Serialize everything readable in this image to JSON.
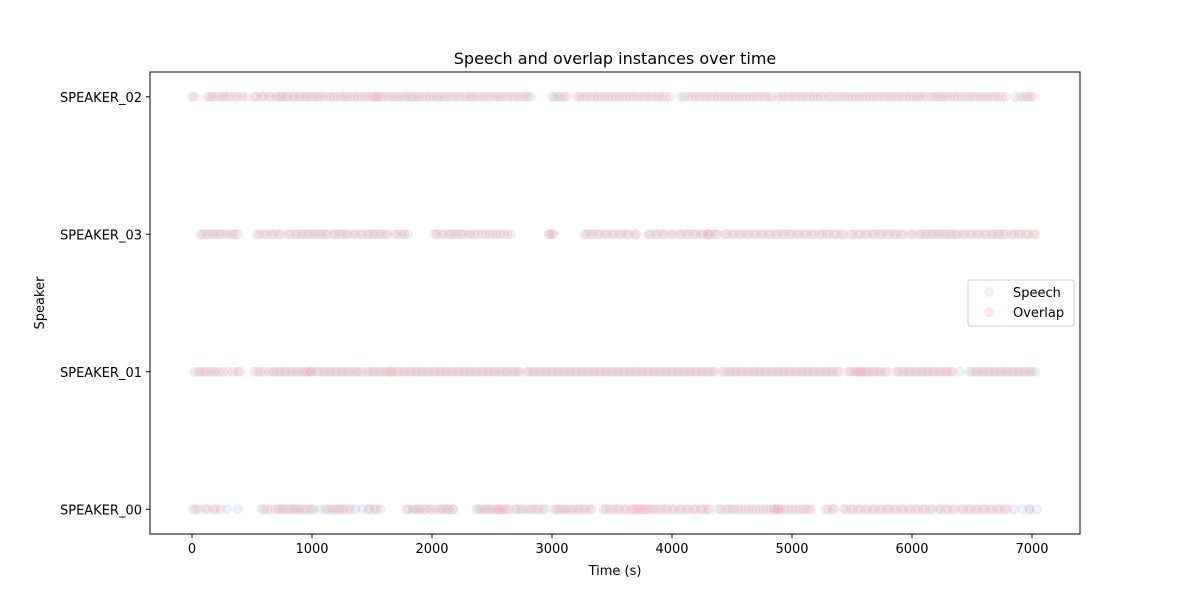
{
  "chart_data": {
    "type": "scatter",
    "title": "Speech and overlap instances over time",
    "xlabel": "Time (s)",
    "ylabel": "Speaker",
    "xlim": [
      -350,
      7400
    ],
    "x_ticks": [
      0,
      1000,
      2000,
      3000,
      4000,
      5000,
      6000,
      7000
    ],
    "categories": [
      "SPEAKER_00",
      "SPEAKER_01",
      "SPEAKER_03",
      "SPEAKER_02"
    ],
    "legend_position": "center-right",
    "grid": false,
    "series": [
      {
        "name": "Speech",
        "color": "#9fbfdf",
        "alpha": 0.2,
        "points": {
          "SPEAKER_00": [
            10,
            60,
            130,
            200,
            290,
            380,
            580,
            630,
            700,
            740,
            790,
            840,
            880,
            930,
            980,
            1020,
            1070,
            1110,
            1160,
            1200,
            1250,
            1300,
            1360,
            1420,
            1470,
            1520,
            1570,
            1790,
            1840,
            1880,
            1930,
            1980,
            2030,
            2080,
            2130,
            2170,
            2370,
            2410,
            2460,
            2500,
            2550,
            2600,
            2640,
            2690,
            2740,
            2790,
            2840,
            2890,
            2940,
            3040,
            3090,
            3130,
            3180,
            3230,
            3280,
            3330,
            3430,
            3480,
            3540,
            3600,
            3660,
            3720,
            3780,
            3830,
            3880,
            3940,
            4000,
            4060,
            4120,
            4180,
            4240,
            4290,
            4390,
            4450,
            4500,
            4550,
            4610,
            4670,
            4730,
            4790,
            4850,
            4910,
            4970,
            5030,
            5090,
            5140,
            5280,
            5340,
            5430,
            5490,
            5550,
            5610,
            5670,
            5730,
            5790,
            5850,
            5910,
            5970,
            6030,
            6090,
            6150,
            6220,
            6280,
            6340,
            6410,
            6470,
            6530,
            6590,
            6650,
            6710,
            6770,
            6850,
            6920,
            6980,
            7040
          ],
          "SPEAKER_01": [
            20,
            70,
            120,
            180,
            230,
            300,
            380,
            520,
            570,
            640,
            690,
            740,
            790,
            840,
            890,
            940,
            990,
            1040,
            1090,
            1140,
            1190,
            1240,
            1290,
            1340,
            1390,
            1460,
            1510,
            1560,
            1610,
            1660,
            1710,
            1760,
            1810,
            1860,
            1910,
            1960,
            2010,
            2060,
            2110,
            2160,
            2210,
            2260,
            2310,
            2360,
            2410,
            2460,
            2510,
            2560,
            2610,
            2660,
            2710,
            2790,
            2840,
            2890,
            2940,
            2990,
            3040,
            3090,
            3140,
            3190,
            3240,
            3290,
            3340,
            3390,
            3440,
            3490,
            3540,
            3590,
            3640,
            3690,
            3740,
            3790,
            3840,
            3890,
            3940,
            3990,
            4040,
            4090,
            4140,
            4190,
            4240,
            4290,
            4340,
            4420,
            4470,
            4520,
            4570,
            4620,
            4670,
            4720,
            4770,
            4820,
            4870,
            4920,
            4970,
            5020,
            5070,
            5120,
            5170,
            5220,
            5270,
            5320,
            5370,
            5470,
            5520,
            5570,
            5620,
            5670,
            5720,
            5770,
            5870,
            5920,
            5970,
            6020,
            6070,
            6120,
            6170,
            6220,
            6270,
            6320,
            6400,
            6480,
            6530,
            6580,
            6630,
            6680,
            6730,
            6780,
            6830,
            6880,
            6930,
            6980,
            7030
          ],
          "SPEAKER_03": [
            70,
            120,
            170,
            220,
            270,
            330,
            380,
            540,
            600,
            660,
            720,
            800,
            860,
            910,
            960,
            1010,
            1060,
            1110,
            1180,
            1230,
            1280,
            1340,
            1400,
            1460,
            1510,
            1560,
            1610,
            1690,
            1750,
            1800,
            2020,
            2080,
            2140,
            2190,
            2240,
            2300,
            2350,
            2420,
            2480,
            2540,
            2600,
            2660,
            2970,
            3010,
            3270,
            3320,
            3380,
            3440,
            3500,
            3560,
            3620,
            3690,
            3800,
            3860,
            3920,
            3990,
            4060,
            4120,
            4180,
            4240,
            4300,
            4360,
            4440,
            4500,
            4560,
            4620,
            4680,
            4740,
            4800,
            4860,
            4920,
            4980,
            5040,
            5100,
            5160,
            5230,
            5290,
            5350,
            5410,
            5490,
            5550,
            5610,
            5670,
            5730,
            5790,
            5850,
            5910,
            5990,
            6060,
            6110,
            6160,
            6210,
            6260,
            6310,
            6360,
            6420,
            6480,
            6540,
            6600,
            6660,
            6710,
            6760,
            6830,
            6890,
            6950,
            7010
          ],
          "SPEAKER_02": [
            0,
            130,
            170,
            230,
            280,
            350,
            420,
            520,
            580,
            640,
            700,
            740,
            790,
            840,
            890,
            940,
            990,
            1040,
            1090,
            1150,
            1210,
            1270,
            1320,
            1380,
            1440,
            1500,
            1550,
            1600,
            1660,
            1710,
            1770,
            1820,
            1870,
            1920,
            1980,
            2040,
            2090,
            2140,
            2200,
            2260,
            2320,
            2370,
            2430,
            2490,
            2550,
            2600,
            2660,
            2720,
            2780,
            2830,
            3000,
            3050,
            3100,
            3200,
            3260,
            3320,
            3380,
            3440,
            3500,
            3560,
            3620,
            3680,
            3740,
            3800,
            3860,
            3920,
            3980,
            4070,
            4140,
            4200,
            4260,
            4320,
            4380,
            4440,
            4500,
            4560,
            4620,
            4680,
            4740,
            4800,
            4880,
            4940,
            5000,
            5060,
            5120,
            5180,
            5240,
            5310,
            5380,
            5440,
            5500,
            5560,
            5620,
            5680,
            5740,
            5800,
            5860,
            5920,
            5980,
            6040,
            6090,
            6160,
            6210,
            6260,
            6320,
            6380,
            6450,
            6510,
            6570,
            6630,
            6690,
            6750,
            6860,
            6930,
            6980
          ]
        }
      },
      {
        "name": "Overlap",
        "color": "#ff9999",
        "alpha": 0.2,
        "points": {
          "SPEAKER_00": [
            30,
            110,
            180,
            240,
            600,
            660,
            720,
            760,
            810,
            860,
            900,
            950,
            1000,
            1130,
            1180,
            1230,
            1270,
            1320,
            1480,
            1540,
            1800,
            1860,
            1900,
            1950,
            2000,
            2060,
            2100,
            2140,
            2180,
            2390,
            2440,
            2480,
            2530,
            2560,
            2580,
            2620,
            2710,
            2760,
            2820,
            2870,
            2920,
            3020,
            3060,
            3110,
            3160,
            3210,
            3260,
            3310,
            3450,
            3510,
            3560,
            3620,
            3680,
            3700,
            3740,
            3760,
            3800,
            3850,
            3910,
            3960,
            4020,
            4080,
            4140,
            4200,
            4260,
            4310,
            4410,
            4470,
            4520,
            4580,
            4640,
            4700,
            4760,
            4820,
            4860,
            4880,
            4890,
            4940,
            5000,
            5060,
            5110,
            5160,
            5300,
            5350,
            5450,
            5510,
            5570,
            5630,
            5690,
            5750,
            5810,
            5870,
            5930,
            5990,
            6050,
            6110,
            6170,
            6240,
            6300,
            6360,
            6430,
            6490,
            6550,
            6610,
            6670,
            6730,
            6790,
            6980
          ],
          "SPEAKER_01": [
            50,
            100,
            150,
            200,
            260,
            340,
            400,
            550,
            600,
            670,
            720,
            770,
            820,
            870,
            920,
            960,
            980,
            1000,
            1060,
            1110,
            1160,
            1210,
            1260,
            1310,
            1370,
            1420,
            1480,
            1530,
            1580,
            1630,
            1650,
            1680,
            1730,
            1780,
            1830,
            1880,
            1930,
            1980,
            2030,
            2080,
            2130,
            2180,
            2230,
            2280,
            2330,
            2380,
            2430,
            2480,
            2530,
            2580,
            2630,
            2690,
            2730,
            2810,
            2860,
            2910,
            2960,
            3010,
            3060,
            3110,
            3160,
            3210,
            3260,
            3310,
            3360,
            3410,
            3460,
            3510,
            3560,
            3610,
            3660,
            3710,
            3760,
            3810,
            3860,
            3910,
            3960,
            4010,
            4060,
            4110,
            4160,
            4210,
            4260,
            4310,
            4360,
            4440,
            4490,
            4540,
            4590,
            4640,
            4690,
            4740,
            4790,
            4840,
            4890,
            4940,
            4990,
            5040,
            5090,
            5140,
            5190,
            5240,
            5290,
            5340,
            5390,
            5490,
            5540,
            5560,
            5580,
            5600,
            5640,
            5690,
            5740,
            5790,
            5890,
            5940,
            5990,
            6040,
            6090,
            6140,
            6190,
            6240,
            6290,
            6340,
            6500,
            6550,
            6600,
            6650,
            6700,
            6750,
            6800,
            6850,
            6900,
            6950,
            7000
          ],
          "SPEAKER_03": [
            90,
            140,
            190,
            240,
            300,
            350,
            560,
            620,
            680,
            740,
            820,
            880,
            930,
            980,
            1030,
            1080,
            1130,
            1200,
            1250,
            1300,
            1360,
            1420,
            1480,
            1530,
            1580,
            1630,
            1710,
            1770,
            2040,
            2100,
            2160,
            2210,
            2260,
            2320,
            2380,
            2450,
            2510,
            2570,
            2630,
            2980,
            3000,
            3290,
            3340,
            3400,
            3460,
            3520,
            3580,
            3640,
            3700,
            3820,
            3880,
            3940,
            4010,
            4080,
            4140,
            4200,
            4260,
            4300,
            4320,
            4380,
            4460,
            4520,
            4580,
            4640,
            4700,
            4760,
            4820,
            4880,
            4940,
            5000,
            5060,
            5120,
            5180,
            5250,
            5310,
            5370,
            5430,
            5510,
            5570,
            5630,
            5690,
            5750,
            5810,
            5870,
            5930,
            6010,
            6080,
            6130,
            6180,
            6230,
            6280,
            6330,
            6380,
            6440,
            6500,
            6560,
            6620,
            6680,
            6730,
            6780,
            6850,
            6910,
            6970,
            7030
          ],
          "SPEAKER_02": [
            20,
            150,
            200,
            260,
            310,
            380,
            460,
            540,
            600,
            660,
            720,
            760,
            800,
            860,
            910,
            960,
            1010,
            1060,
            1120,
            1180,
            1240,
            1290,
            1350,
            1410,
            1470,
            1520,
            1540,
            1570,
            1630,
            1690,
            1740,
            1790,
            1840,
            1890,
            1950,
            2010,
            2060,
            2110,
            2170,
            2230,
            2290,
            2340,
            2400,
            2460,
            2520,
            2570,
            2630,
            2690,
            2750,
            2800,
            3020,
            3070,
            3120,
            3230,
            3290,
            3350,
            3410,
            3470,
            3530,
            3590,
            3650,
            3710,
            3770,
            3830,
            3890,
            3950,
            4100,
            4170,
            4230,
            4290,
            4350,
            4410,
            4470,
            4530,
            4590,
            4650,
            4710,
            4770,
            4830,
            4910,
            4970,
            5030,
            5090,
            5150,
            5210,
            5270,
            5340,
            5410,
            5470,
            5530,
            5590,
            5650,
            5710,
            5770,
            5830,
            5890,
            5950,
            6010,
            6060,
            6120,
            6190,
            6240,
            6290,
            6350,
            6410,
            6480,
            6540,
            6600,
            6660,
            6720,
            6780,
            6900,
            6960,
            7000
          ]
        }
      }
    ]
  }
}
